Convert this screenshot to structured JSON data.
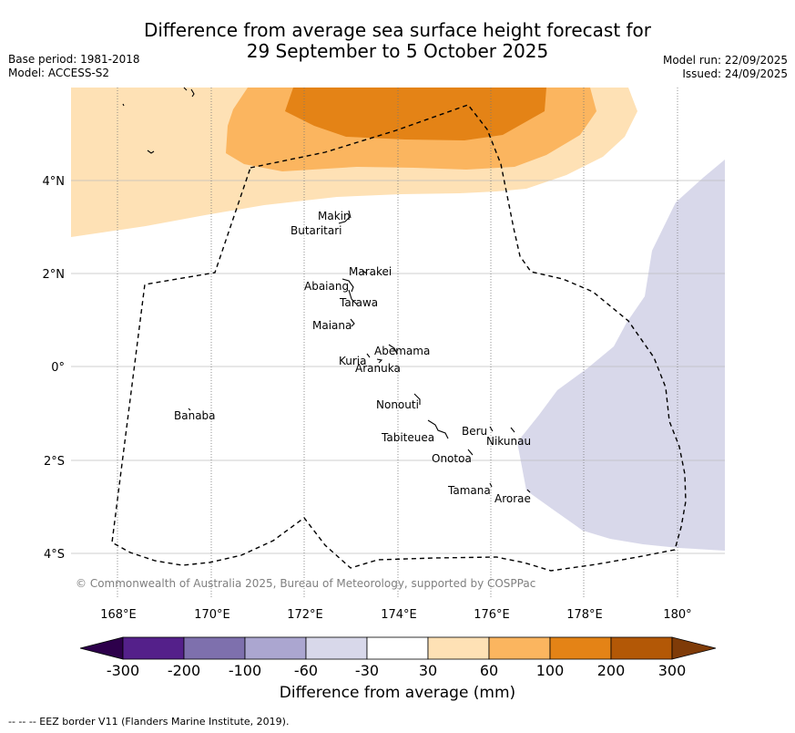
{
  "title_line1": "Difference from average sea surface height forecast for",
  "title_line2": "29 September to 5 October 2025",
  "meta_left": [
    "Base period: 1981-2018",
    "Model: ACCESS-S2"
  ],
  "meta_right": [
    "Model run: 22/09/2025",
    "Issued: 24/09/2025"
  ],
  "map": {
    "lon_labels": [
      "168°E",
      "170°E",
      "172°E",
      "174°E",
      "176°E",
      "178°E",
      "180°"
    ],
    "lat_labels": [
      "4°N",
      "2°N",
      "0°",
      "2°S",
      "4°S"
    ],
    "copyright": "© Commonwealth of Australia 2025, Bureau of Meteorology, supported by COSPPac",
    "islands": [
      "Makin",
      "Butaritari",
      "Marakei",
      "Abaiang",
      "Tarawa",
      "Maiana",
      "Abemama",
      "Kuria",
      "Aranuka",
      "Nonouti",
      "Banaba",
      "Beru",
      "Nikunau",
      "Tabiteuea",
      "Onotoa",
      "Tamana",
      "Arorae"
    ]
  },
  "colorbar": {
    "label": "Difference from average (mm)",
    "ticks": [
      "-300",
      "-200",
      "-100",
      "-60",
      "-30",
      "30",
      "60",
      "100",
      "200",
      "300"
    ],
    "colors": [
      "#54208a",
      "#7e70ad",
      "#aba6d0",
      "#d8d8ea",
      "#ffffff",
      "#fee1b5",
      "#fbb55f",
      "#e48316",
      "#b35806"
    ],
    "extend_low_color": "#2d004b",
    "extend_high_color": "#7f3b08"
  },
  "footer": "-- -- -- EEZ border V11 (Flanders Marine Institute, 2019)."
}
